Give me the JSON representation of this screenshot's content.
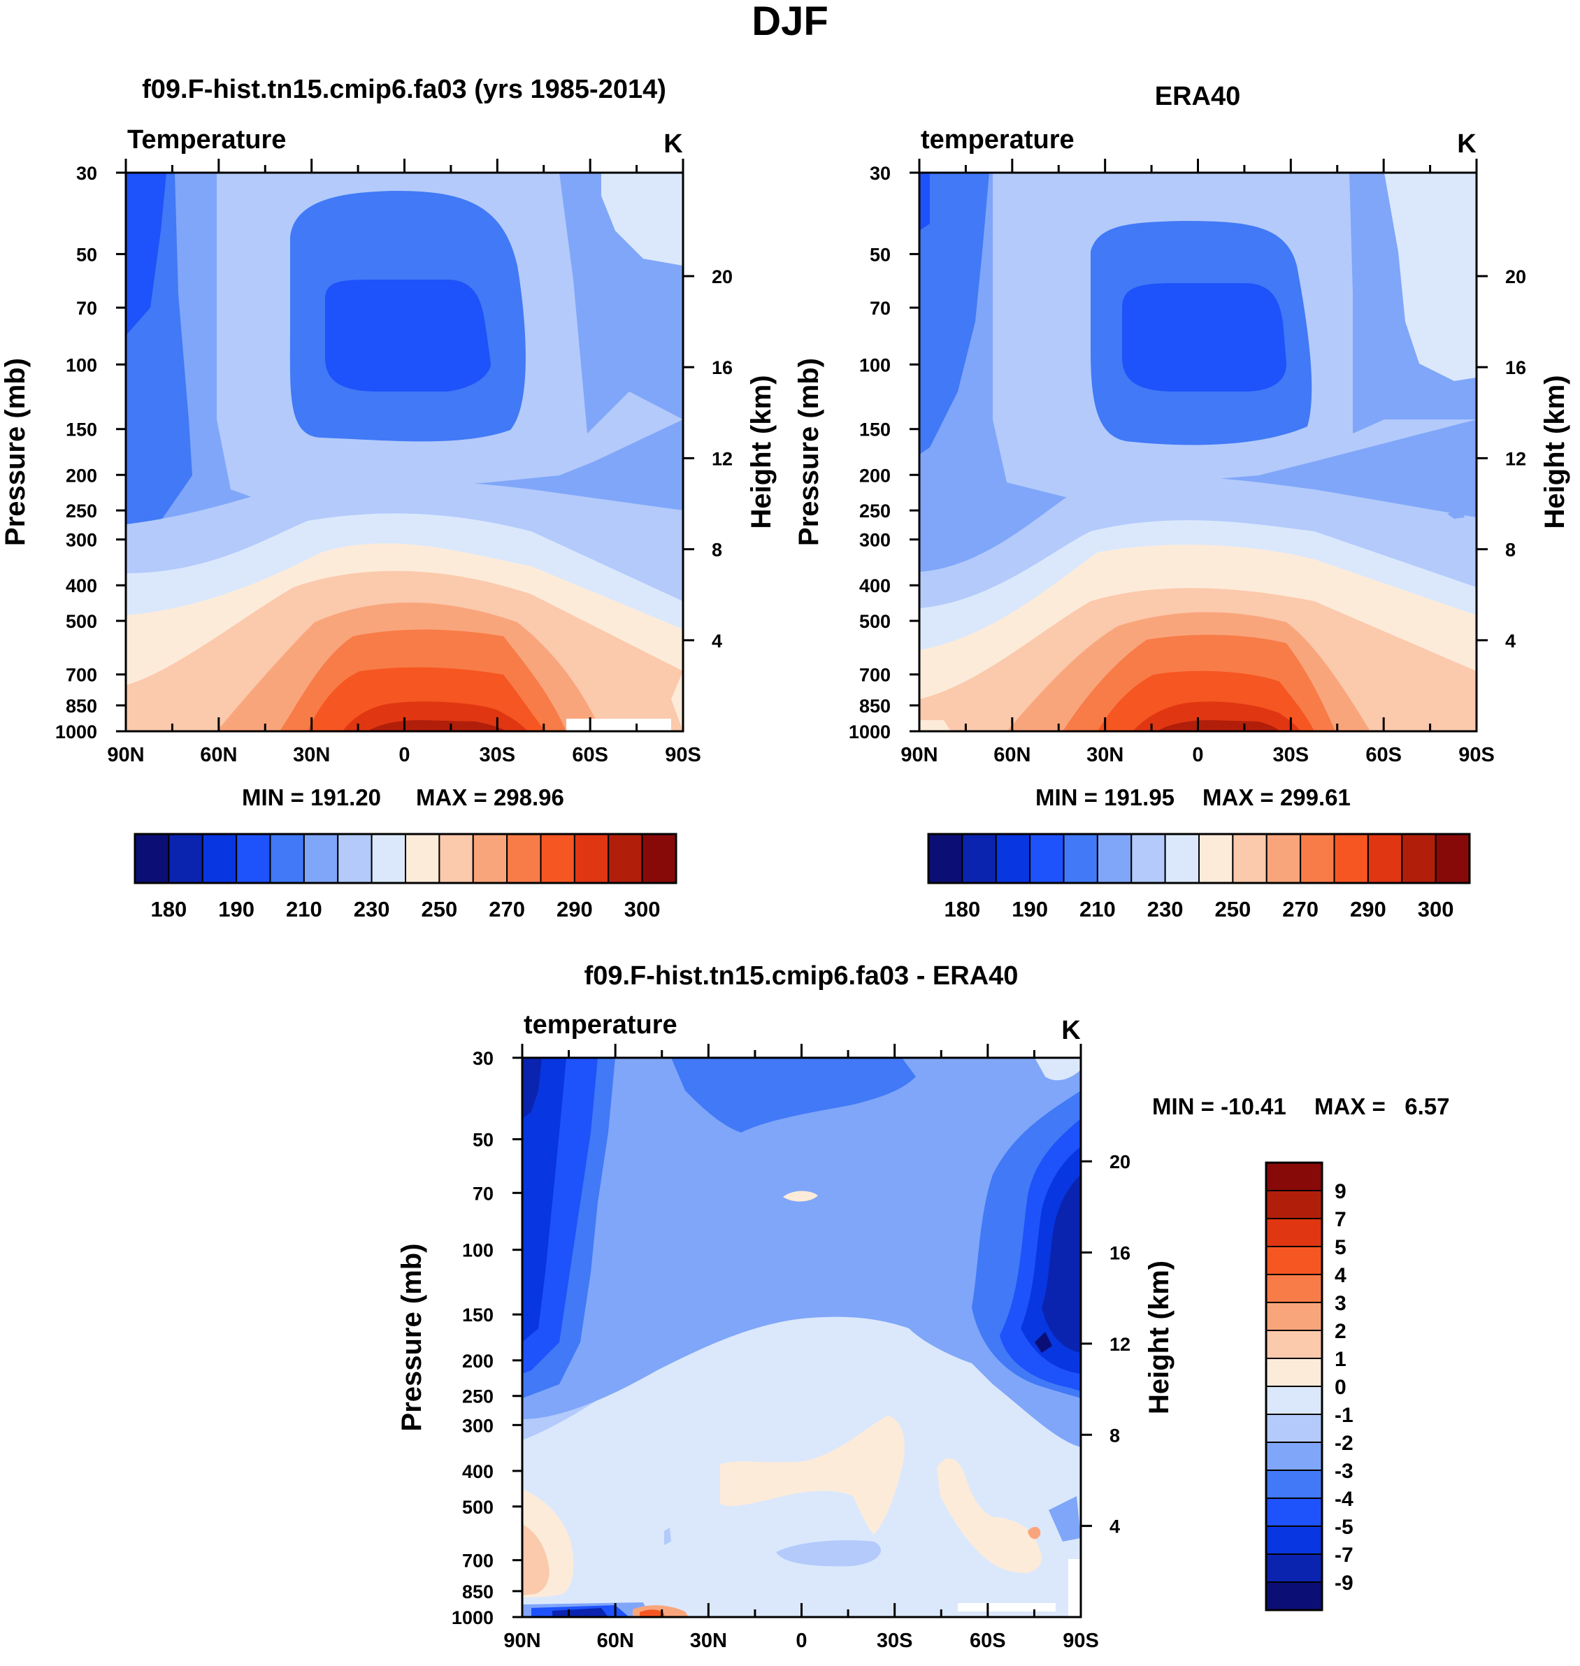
{
  "main_title": "DJF",
  "colors": {
    "temp_palette": [
      "#0b0f75",
      "#0a24b0",
      "#0836e0",
      "#1e52fa",
      "#4179f6",
      "#80a6f9",
      "#b3cafb",
      "#dbe8fc",
      "#fdebd9",
      "#fbc9ac",
      "#f9a57c",
      "#f87c48",
      "#f65621",
      "#e03712",
      "#b11f0b",
      "#870a09"
    ],
    "diff_palette": [
      "#0b0f75",
      "#0a24b0",
      "#0836e0",
      "#1e52fa",
      "#4179f6",
      "#80a6f9",
      "#b3cafb",
      "#dbe8fc",
      "#fdebd9",
      "#fbc9ac",
      "#f9a57c",
      "#f87c48",
      "#f65621",
      "#e03712",
      "#b11f0b",
      "#870a09"
    ]
  },
  "axis_common": {
    "lat_ticks": [
      "90N",
      "60N",
      "30N",
      "0",
      "30S",
      "60S",
      "90S"
    ],
    "pressure_ticks": [
      "30",
      "50",
      "70",
      "100",
      "150",
      "200",
      "250",
      "300",
      "400",
      "500",
      "700",
      "850",
      "1000"
    ],
    "height_ticks": [
      "20",
      "16",
      "12",
      "8",
      "4"
    ],
    "ylabel_left": "Pressure (mb)",
    "ylabel_right": "Height (km)"
  },
  "chart_data": [
    {
      "id": "model",
      "type": "contour",
      "title": "f09.F-hist.tn15.cmip6.fa03 (yrs 1985-2014)",
      "left_label": "Temperature",
      "units": "K",
      "min_text": "MIN = 191.20",
      "max_text": "MAX = 298.96",
      "xlabel": "",
      "xlim": [
        90,
        -90
      ],
      "ylim_mb": [
        1000,
        30
      ],
      "colorbar_levels": [
        180,
        185,
        190,
        200,
        210,
        220,
        230,
        240,
        250,
        260,
        270,
        280,
        290,
        295,
        300
      ],
      "colorbar_labels": [
        "180",
        "190",
        "210",
        "230",
        "250",
        "270",
        "290",
        "300"
      ]
    },
    {
      "id": "obs",
      "type": "contour",
      "title": "ERA40",
      "left_label": "temperature",
      "units": "K",
      "min_text": "MIN = 191.95",
      "max_text": "MAX = 299.61",
      "xlim": [
        90,
        -90
      ],
      "ylim_mb": [
        1000,
        30
      ],
      "colorbar_levels": [
        180,
        185,
        190,
        200,
        210,
        220,
        230,
        240,
        250,
        260,
        270,
        280,
        290,
        295,
        300
      ],
      "colorbar_labels": [
        "180",
        "190",
        "210",
        "230",
        "250",
        "270",
        "290",
        "300"
      ]
    },
    {
      "id": "diff",
      "type": "contour",
      "title": "f09.F-hist.tn15.cmip6.fa03 - ERA40",
      "left_label": "temperature",
      "units": "K",
      "min_text": "MIN = -10.41",
      "max_text": "MAX =   6.57",
      "xlim": [
        90,
        -90
      ],
      "ylim_mb": [
        1000,
        30
      ],
      "colorbar_levels": [
        -9,
        -7,
        -5,
        -4,
        -3,
        -2,
        -1,
        0,
        1,
        2,
        3,
        4,
        5,
        7,
        9
      ],
      "colorbar_labels": [
        "9",
        "7",
        "5",
        "4",
        "3",
        "2",
        "1",
        "0",
        "-1",
        "-2",
        "-3",
        "-4",
        "-5",
        "-7",
        "-9"
      ]
    }
  ]
}
